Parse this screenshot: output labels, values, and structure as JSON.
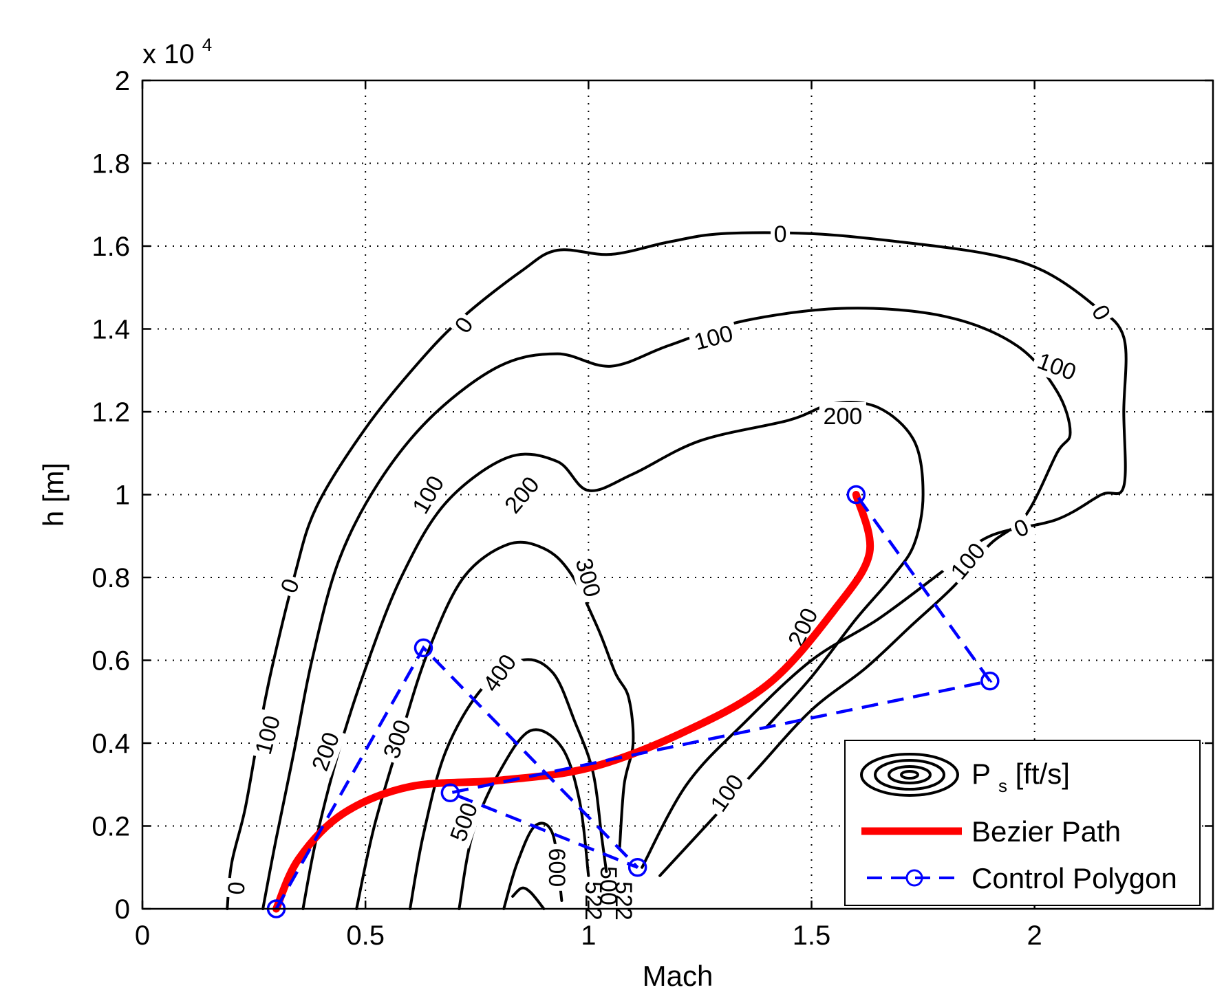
{
  "chart_data": {
    "type": "contour",
    "title": "",
    "xlabel": "Mach",
    "ylabel": "h [m]",
    "y_exponent_label": "x 10",
    "y_exponent": "4",
    "xlim": [
      0,
      2.4
    ],
    "ylim": [
      0,
      2
    ],
    "xticks": [
      0,
      0.5,
      1,
      1.5,
      2
    ],
    "xtick_labels": [
      "0",
      "0.5",
      "1",
      "1.5",
      "2"
    ],
    "yticks": [
      0,
      0.2,
      0.4,
      0.6,
      0.8,
      1,
      1.2,
      1.4,
      1.6,
      1.8,
      2
    ],
    "ytick_labels": [
      "0",
      "0.2",
      "0.4",
      "0.6",
      "0.8",
      "1",
      "1.2",
      "1.4",
      "1.6",
      "1.8",
      "2"
    ],
    "grid": true,
    "legend": {
      "position": "bottom-right",
      "entries": [
        "P",
        "s",
        " [ft/s]",
        "Bezier Path",
        "Control Polygon"
      ]
    },
    "series": [
      {
        "name": "Bezier Path",
        "color": "#ff0000",
        "points": [
          [
            0.3,
            0.0
          ],
          [
            0.35,
            0.12
          ],
          [
            0.45,
            0.23
          ],
          [
            0.6,
            0.295
          ],
          [
            0.8,
            0.31
          ],
          [
            1.0,
            0.34
          ],
          [
            1.2,
            0.42
          ],
          [
            1.4,
            0.54
          ],
          [
            1.55,
            0.72
          ],
          [
            1.63,
            0.86
          ],
          [
            1.6,
            1.0
          ]
        ]
      },
      {
        "name": "Control Polygon",
        "color": "#0000ff",
        "points": [
          [
            0.3,
            0.0
          ],
          [
            0.63,
            0.63
          ],
          [
            1.11,
            0.1
          ],
          [
            0.69,
            0.28
          ],
          [
            1.9,
            0.55
          ],
          [
            1.6,
            1.0
          ]
        ]
      }
    ],
    "contours": [
      {
        "level": "0",
        "labels": [
          {
            "text": "0",
            "x": 1.43,
            "y": 1.63,
            "angle": 0
          },
          {
            "text": "0",
            "x": 0.72,
            "y": 1.41,
            "angle": -55
          },
          {
            "text": "0",
            "x": 2.15,
            "y": 1.44,
            "angle": 60
          },
          {
            "text": "0",
            "x": 0.33,
            "y": 0.78,
            "angle": -70
          },
          {
            "text": "0",
            "x": 0.21,
            "y": 0.05,
            "angle": -85
          },
          {
            "text": "0",
            "x": 1.97,
            "y": 0.92,
            "angle": -25
          }
        ],
        "paths": [
          [
            [
              0.19,
              0.0
            ],
            [
              0.2,
              0.11
            ],
            [
              0.23,
              0.24
            ],
            [
              0.26,
              0.42
            ],
            [
              0.29,
              0.58
            ],
            [
              0.34,
              0.8
            ],
            [
              0.39,
              0.97
            ],
            [
              0.5,
              1.16
            ],
            [
              0.62,
              1.32
            ],
            [
              0.72,
              1.43
            ],
            [
              0.85,
              1.54
            ],
            [
              0.93,
              1.59
            ],
            [
              1.05,
              1.58
            ],
            [
              1.18,
              1.61
            ],
            [
              1.3,
              1.63
            ],
            [
              1.5,
              1.63
            ],
            [
              1.7,
              1.61
            ],
            [
              1.9,
              1.58
            ],
            [
              2.02,
              1.54
            ],
            [
              2.13,
              1.46
            ],
            [
              2.2,
              1.38
            ],
            [
              2.2,
              1.2
            ],
            [
              2.2,
              1.02
            ],
            [
              2.15,
              1.0
            ],
            [
              2.05,
              0.94
            ],
            [
              1.9,
              0.9
            ],
            [
              1.8,
              0.82
            ],
            [
              1.65,
              0.7
            ],
            [
              1.5,
              0.6
            ],
            [
              1.35,
              0.45
            ],
            [
              1.22,
              0.3
            ],
            [
              1.12,
              0.1
            ]
          ]
        ]
      },
      {
        "level": "100",
        "labels": [
          {
            "text": "100",
            "x": 1.28,
            "y": 1.38,
            "angle": -15
          },
          {
            "text": "100",
            "x": 2.05,
            "y": 1.31,
            "angle": 20
          },
          {
            "text": "100",
            "x": 0.64,
            "y": 1.0,
            "angle": -60
          },
          {
            "text": "100",
            "x": 1.85,
            "y": 0.84,
            "angle": -50
          },
          {
            "text": "100",
            "x": 0.28,
            "y": 0.42,
            "angle": -75
          },
          {
            "text": "100",
            "x": 1.31,
            "y": 0.28,
            "angle": -55
          }
        ],
        "paths": [
          [
            [
              0.27,
              0.0
            ],
            [
              0.3,
              0.17
            ],
            [
              0.34,
              0.38
            ],
            [
              0.38,
              0.6
            ],
            [
              0.44,
              0.84
            ],
            [
              0.53,
              1.03
            ],
            [
              0.65,
              1.19
            ],
            [
              0.8,
              1.31
            ],
            [
              0.93,
              1.34
            ],
            [
              1.05,
              1.31
            ],
            [
              1.18,
              1.36
            ],
            [
              1.35,
              1.42
            ],
            [
              1.58,
              1.45
            ],
            [
              1.8,
              1.43
            ],
            [
              1.96,
              1.36
            ],
            [
              2.05,
              1.25
            ],
            [
              2.08,
              1.15
            ],
            [
              2.05,
              1.1
            ],
            [
              1.98,
              0.95
            ],
            [
              1.9,
              0.88
            ],
            [
              1.82,
              0.78
            ],
            [
              1.72,
              0.68
            ],
            [
              1.62,
              0.58
            ],
            [
              1.5,
              0.48
            ],
            [
              1.38,
              0.34
            ],
            [
              1.28,
              0.22
            ],
            [
              1.16,
              0.08
            ]
          ]
        ]
      },
      {
        "level": "200",
        "labels": [
          {
            "text": "200",
            "x": 1.57,
            "y": 1.19,
            "angle": 0
          },
          {
            "text": "200",
            "x": 0.85,
            "y": 1.0,
            "angle": -50
          },
          {
            "text": "200",
            "x": 1.48,
            "y": 0.68,
            "angle": -65
          },
          {
            "text": "200",
            "x": 0.41,
            "y": 0.38,
            "angle": -70
          }
        ],
        "paths": [
          [
            [
              0.36,
              0.0
            ],
            [
              0.39,
              0.17
            ],
            [
              0.44,
              0.38
            ],
            [
              0.5,
              0.58
            ],
            [
              0.58,
              0.8
            ],
            [
              0.68,
              0.98
            ],
            [
              0.82,
              1.09
            ],
            [
              0.93,
              1.08
            ],
            [
              1.0,
              1.01
            ],
            [
              1.1,
              1.05
            ],
            [
              1.25,
              1.13
            ],
            [
              1.45,
              1.18
            ],
            [
              1.55,
              1.22
            ],
            [
              1.65,
              1.21
            ],
            [
              1.73,
              1.13
            ],
            [
              1.75,
              1.0
            ],
            [
              1.73,
              0.88
            ],
            [
              1.68,
              0.8
            ],
            [
              1.6,
              0.7
            ],
            [
              1.5,
              0.56
            ],
            [
              1.4,
              0.44
            ]
          ]
        ]
      },
      {
        "level": "300",
        "labels": [
          {
            "text": "300",
            "x": 1.0,
            "y": 0.8,
            "angle": 75
          },
          {
            "text": "300",
            "x": 0.57,
            "y": 0.41,
            "angle": -70
          }
        ],
        "paths": [
          [
            [
              0.48,
              0.0
            ],
            [
              0.52,
              0.2
            ],
            [
              0.58,
              0.42
            ],
            [
              0.64,
              0.62
            ],
            [
              0.72,
              0.8
            ],
            [
              0.82,
              0.88
            ],
            [
              0.9,
              0.87
            ],
            [
              0.96,
              0.81
            ],
            [
              1.02,
              0.68
            ],
            [
              1.06,
              0.57
            ],
            [
              1.09,
              0.51
            ],
            [
              1.1,
              0.4
            ],
            [
              1.08,
              0.3
            ],
            [
              1.07,
              0.15
            ]
          ]
        ]
      },
      {
        "level": "400",
        "labels": [
          {
            "text": "400",
            "x": 0.8,
            "y": 0.57,
            "angle": -55
          }
        ],
        "paths": [
          [
            [
              0.6,
              0.0
            ],
            [
              0.63,
              0.18
            ],
            [
              0.68,
              0.38
            ],
            [
              0.76,
              0.53
            ],
            [
              0.85,
              0.6
            ],
            [
              0.92,
              0.57
            ],
            [
              0.97,
              0.45
            ],
            [
              1.01,
              0.33
            ],
            [
              1.03,
              0.17
            ],
            [
              1.04,
              0.09
            ]
          ]
        ]
      },
      {
        "level": "500",
        "labels": [
          {
            "text": "500",
            "x": 0.72,
            "y": 0.21,
            "angle": -70
          }
        ],
        "paths": [
          [
            [
              0.71,
              0.0
            ],
            [
              0.74,
              0.18
            ],
            [
              0.8,
              0.33
            ],
            [
              0.87,
              0.43
            ],
            [
              0.94,
              0.39
            ],
            [
              0.98,
              0.26
            ],
            [
              1.0,
              0.08
            ]
          ]
        ]
      },
      {
        "level": "600",
        "labels": [
          {
            "text": "600",
            "x": 0.93,
            "y": 0.1,
            "angle": 90
          }
        ],
        "paths": [
          [
            [
              0.81,
              0.0
            ],
            [
              0.84,
              0.11
            ],
            [
              0.88,
              0.2
            ],
            [
              0.92,
              0.18
            ],
            [
              0.94,
              0.02
            ]
          ]
        ]
      },
      {
        "level": "",
        "labels": [],
        "paths": [
          [
            [
              0.83,
              0.03
            ],
            [
              0.85,
              0.05
            ],
            [
              0.87,
              0.04
            ],
            [
              0.9,
              0.0
            ]
          ]
        ]
      }
    ],
    "small_labels": [
      "500",
      "522",
      "522"
    ]
  }
}
